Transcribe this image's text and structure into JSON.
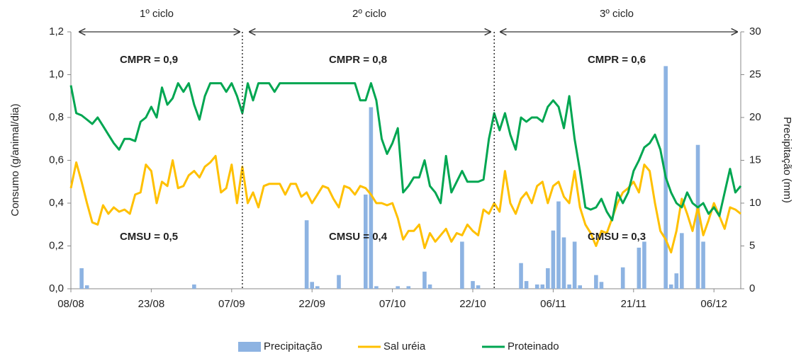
{
  "chart_data": {
    "type": "combo",
    "ylabel": "Consumo (g/animal/dia)",
    "y2label": "Precipitação (mm)",
    "categories": [
      "08/08",
      null,
      null,
      null,
      null,
      null,
      null,
      null,
      null,
      null,
      null,
      null,
      null,
      null,
      null,
      "23/08",
      null,
      null,
      null,
      null,
      null,
      null,
      null,
      null,
      null,
      null,
      null,
      null,
      null,
      null,
      "07/09",
      null,
      null,
      null,
      null,
      null,
      null,
      null,
      null,
      null,
      null,
      null,
      null,
      null,
      null,
      "22/09",
      null,
      null,
      null,
      null,
      null,
      null,
      null,
      null,
      null,
      null,
      null,
      null,
      null,
      null,
      "07/10",
      null,
      null,
      null,
      null,
      null,
      null,
      null,
      null,
      null,
      null,
      null,
      null,
      null,
      null,
      "22/10",
      null,
      null,
      null,
      null,
      null,
      null,
      null,
      null,
      null,
      null,
      null,
      null,
      null,
      null,
      "06/11",
      null,
      null,
      null,
      null,
      null,
      null,
      null,
      null,
      null,
      null,
      null,
      null,
      null,
      null,
      "21/11",
      null,
      null,
      null,
      null,
      null,
      null,
      null,
      null,
      null,
      null,
      null,
      null,
      null,
      null,
      "06/12",
      null,
      null,
      null,
      null,
      null
    ],
    "ylim": [
      0,
      1.2
    ],
    "yticks": [
      {
        "value": 0,
        "label": "0,0"
      },
      {
        "value": 0.2,
        "label": "0,2"
      },
      {
        "value": 0.4,
        "label": "0,4"
      },
      {
        "value": 0.6,
        "label": "0,6"
      },
      {
        "value": 0.8,
        "label": "0,8"
      },
      {
        "value": 1.0,
        "label": "1,0"
      },
      {
        "value": 1.2,
        "label": "1,2"
      }
    ],
    "y2lim": [
      0,
      30
    ],
    "y2ticks": [
      0,
      5,
      10,
      15,
      20,
      25,
      30
    ],
    "series": [
      {
        "name": "Precipitação",
        "type": "bar",
        "axis": "y2",
        "color": "#8db3e2",
        "values": [
          0,
          0,
          2.4,
          0.4,
          0,
          0,
          0,
          0,
          0,
          0,
          0,
          0,
          0,
          0,
          0,
          0,
          0,
          0,
          0,
          0,
          0,
          0,
          0,
          0.5,
          0,
          0,
          0,
          0,
          0,
          0,
          0,
          0,
          0,
          0,
          0,
          0,
          0,
          0,
          0,
          0,
          0,
          0,
          0,
          0,
          8.0,
          0.8,
          0.3,
          0,
          0,
          0,
          1.6,
          0,
          0,
          0,
          0,
          11,
          21.2,
          0.3,
          0,
          0,
          0,
          0.3,
          0,
          0.3,
          0,
          0,
          2,
          0.5,
          0,
          0,
          0,
          0,
          0,
          5.5,
          0,
          0.9,
          0.4,
          0,
          0,
          0,
          0,
          0,
          0,
          0,
          3,
          0.9,
          0,
          0.5,
          0.5,
          2.4,
          6.8,
          10.2,
          6,
          0.5,
          5.5,
          0.4,
          0,
          0,
          1.6,
          0.8,
          0,
          0,
          0,
          2.5,
          0,
          0,
          4.8,
          5.5,
          0,
          0,
          0,
          26,
          0.5,
          1.8,
          6.5,
          0,
          0,
          16.8,
          5.5,
          0,
          0,
          0,
          0,
          0,
          0,
          0
        ]
      },
      {
        "name": "Sal uréia",
        "type": "line",
        "color": "#ffc000",
        "values": [
          0.47,
          0.59,
          0.5,
          0.4,
          0.31,
          0.3,
          0.39,
          0.35,
          0.38,
          0.36,
          0.37,
          0.35,
          0.44,
          0.45,
          0.58,
          0.55,
          0.4,
          0.5,
          0.48,
          0.6,
          0.47,
          0.48,
          0.53,
          0.55,
          0.52,
          0.57,
          0.59,
          0.62,
          0.45,
          0.47,
          0.58,
          0.4,
          0.57,
          0.4,
          0.45,
          0.38,
          0.48,
          0.49,
          0.49,
          0.49,
          0.44,
          0.49,
          0.49,
          0.43,
          0.45,
          0.4,
          0.44,
          0.48,
          0.47,
          0.42,
          0.38,
          0.48,
          0.47,
          0.44,
          0.48,
          0.47,
          0.44,
          0.4,
          0.4,
          0.39,
          0.4,
          0.33,
          0.23,
          0.27,
          0.27,
          0.3,
          0.19,
          0.26,
          0.22,
          0.25,
          0.28,
          0.22,
          0.26,
          0.25,
          0.3,
          0.27,
          0.25,
          0.37,
          0.35,
          0.4,
          0.36,
          0.55,
          0.4,
          0.35,
          0.42,
          0.45,
          0.4,
          0.48,
          0.5,
          0.4,
          0.48,
          0.5,
          0.43,
          0.4,
          0.55,
          0.38,
          0.3,
          0.26,
          0.2,
          0.27,
          0.26,
          0.33,
          0.4,
          0.45,
          0.47,
          0.5,
          0.45,
          0.58,
          0.55,
          0.4,
          0.27,
          0.23,
          0.17,
          0.27,
          0.42,
          0.35,
          0.27,
          0.38,
          0.25,
          0.32,
          0.4,
          0.34,
          0.28,
          0.38,
          0.37,
          0.35
        ]
      },
      {
        "name": "Proteinado",
        "type": "line",
        "color": "#00a651",
        "values": [
          0.95,
          0.82,
          0.81,
          0.79,
          0.77,
          0.8,
          0.76,
          0.72,
          0.68,
          0.65,
          0.7,
          0.7,
          0.69,
          0.78,
          0.8,
          0.85,
          0.8,
          0.94,
          0.86,
          0.89,
          0.96,
          0.92,
          0.96,
          0.86,
          0.79,
          0.9,
          0.96,
          0.96,
          0.96,
          0.92,
          0.96,
          0.9,
          0.82,
          0.96,
          0.88,
          0.96,
          0.96,
          0.96,
          0.92,
          0.96,
          0.96,
          0.96,
          0.96,
          0.96,
          0.96,
          0.96,
          0.96,
          0.96,
          0.96,
          0.96,
          0.96,
          0.96,
          0.96,
          0.96,
          0.88,
          0.88,
          0.96,
          0.88,
          0.7,
          0.63,
          0.68,
          0.75,
          0.45,
          0.48,
          0.52,
          0.52,
          0.6,
          0.48,
          0.45,
          0.4,
          0.62,
          0.45,
          0.5,
          0.55,
          0.5,
          0.5,
          0.5,
          0.51,
          0.7,
          0.82,
          0.74,
          0.82,
          0.72,
          0.65,
          0.8,
          0.78,
          0.8,
          0.8,
          0.78,
          0.85,
          0.88,
          0.85,
          0.75,
          0.9,
          0.7,
          0.55,
          0.38,
          0.37,
          0.38,
          0.42,
          0.36,
          0.32,
          0.45,
          0.4,
          0.45,
          0.55,
          0.6,
          0.66,
          0.68,
          0.72,
          0.65,
          0.52,
          0.45,
          0.4,
          0.38,
          0.45,
          0.4,
          0.38,
          0.4,
          0.35,
          0.38,
          0.34,
          0.45,
          0.56,
          0.45,
          0.48
        ]
      }
    ],
    "annotations": [
      "1º ciclo",
      "2º ciclo",
      "3º ciclo",
      "CMPR = 0,9",
      "CMPR = 0,8",
      "CMPR = 0,6",
      "CMSU = 0,5",
      "CMSU = 0,4",
      "CMSU = 0,3"
    ]
  }
}
